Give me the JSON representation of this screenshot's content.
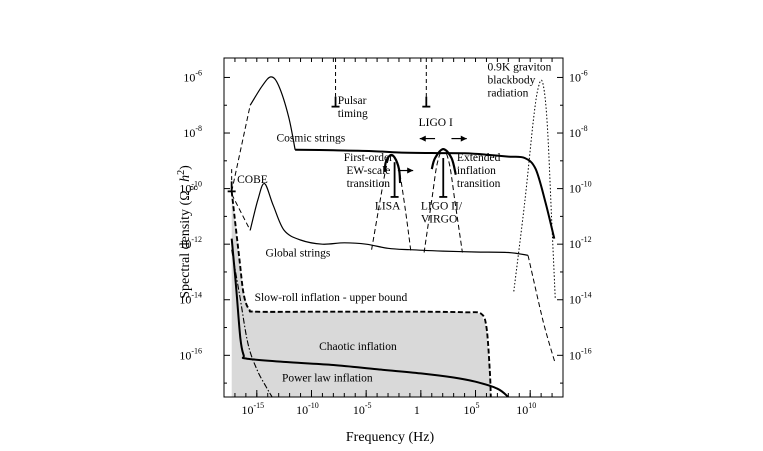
{
  "chart_data": {
    "type": "line",
    "title": "",
    "xlabel": "Frequency (Hz)",
    "ylabel_parts": {
      "pre": "Spectral density (Ω",
      "sub": "g",
      "mid": " h",
      "sup": "2",
      "post": ")"
    },
    "x_log10_range": [
      -18,
      13
    ],
    "y_log10_range": [
      -17.5,
      -5.3
    ],
    "x_ticks": [
      {
        "base": "10",
        "exp": "-15",
        "x": -15
      },
      {
        "base": "10",
        "exp": "-10",
        "x": -10
      },
      {
        "base": "10",
        "exp": "-5",
        "x": -5
      },
      {
        "base": "1",
        "exp": "",
        "x": 0
      },
      {
        "base": "10",
        "exp": "5",
        "x": 5
      },
      {
        "base": "10",
        "exp": "10",
        "x": 10
      }
    ],
    "y_ticks": [
      {
        "base": "10",
        "exp": "-6",
        "y": -6
      },
      {
        "base": "10",
        "exp": "-8",
        "y": -8
      },
      {
        "base": "10",
        "exp": "-10",
        "y": -10
      },
      {
        "base": "10",
        "exp": "-12",
        "y": -12
      },
      {
        "base": "10",
        "exp": "-14",
        "y": -14
      },
      {
        "base": "10",
        "exp": "-16",
        "y": -16
      }
    ],
    "series": [
      {
        "style": "thick",
        "points": [
          [
            -11.5,
            -8.6
          ],
          [
            -8,
            -8.62
          ],
          [
            -4.5,
            -8.65
          ],
          [
            -2,
            -8.7
          ],
          [
            1,
            -8.72
          ],
          [
            4,
            -8.73
          ],
          [
            6,
            -8.78
          ],
          [
            8,
            -8.85
          ],
          [
            9.5,
            -8.9
          ],
          [
            10.5,
            -9.3
          ],
          [
            11.4,
            -10.5
          ],
          [
            12.2,
            -11.8
          ]
        ]
      },
      {
        "style": "solid",
        "points": [
          [
            -15.6,
            -7.0
          ],
          [
            -14.5,
            -6.3
          ],
          [
            -13.7,
            -5.98
          ],
          [
            -13.0,
            -6.3
          ],
          [
            -12.1,
            -7.4
          ],
          [
            -11.5,
            -8.6
          ]
        ]
      },
      {
        "style": "dashed",
        "points": [
          [
            -17.3,
            -10.1
          ],
          [
            -15.6,
            -7.0
          ]
        ]
      },
      {
        "style": "solid",
        "points": [
          [
            -15.6,
            -11.5
          ],
          [
            -14.9,
            -10.4
          ],
          [
            -14.3,
            -9.82
          ],
          [
            -13.5,
            -10.6
          ],
          [
            -12.5,
            -11.5
          ],
          [
            -11,
            -11.85
          ],
          [
            -9,
            -12.0
          ],
          [
            -7,
            -11.95
          ],
          [
            -5,
            -12.0
          ],
          [
            -3,
            -12.15
          ],
          [
            -1,
            -12.2
          ],
          [
            2,
            -12.25
          ],
          [
            5,
            -12.28
          ],
          [
            8,
            -12.3
          ],
          [
            9.8,
            -12.4
          ]
        ]
      },
      {
        "style": "dashed",
        "points": [
          [
            -17.3,
            -10.2
          ],
          [
            -15.6,
            -11.5
          ]
        ]
      },
      {
        "style": "dashed",
        "points": [
          [
            9.8,
            -12.4
          ],
          [
            11.2,
            -14.8
          ],
          [
            12.3,
            -16.3
          ]
        ]
      },
      {
        "style": "dotted",
        "points": [
          [
            8.5,
            -13.7
          ],
          [
            9.5,
            -10.5
          ],
          [
            10.3,
            -7.5
          ],
          [
            10.75,
            -6.35
          ],
          [
            11.15,
            -6.2
          ],
          [
            11.55,
            -7.6
          ],
          [
            11.95,
            -11
          ],
          [
            12.3,
            -14
          ]
        ]
      },
      {
        "style": "thickdash",
        "points": [
          [
            -17.3,
            -10.1
          ],
          [
            -16.6,
            -12.5
          ],
          [
            -16.2,
            -13.8
          ],
          [
            -15.7,
            -14.35
          ],
          [
            -15,
            -14.43
          ],
          [
            -10,
            -14.43
          ],
          [
            -5,
            -14.43
          ],
          [
            0,
            -14.43
          ],
          [
            4,
            -14.45
          ],
          [
            5.5,
            -14.5
          ],
          [
            6.0,
            -15.0
          ],
          [
            6.3,
            -16.5
          ],
          [
            6.4,
            -17.5
          ]
        ]
      },
      {
        "style": "thick",
        "points": [
          [
            -17.3,
            -11.8
          ],
          [
            -16.9,
            -13.5
          ],
          [
            -16.5,
            -15.4
          ],
          [
            -16.2,
            -16.0
          ],
          [
            -15.9,
            -16.12
          ],
          [
            -12,
            -16.25
          ],
          [
            -8,
            -16.35
          ],
          [
            -4,
            -16.5
          ],
          [
            0,
            -16.65
          ],
          [
            3,
            -16.8
          ],
          [
            5,
            -16.95
          ],
          [
            7,
            -17.2
          ],
          [
            8.0,
            -17.5
          ]
        ]
      },
      {
        "style": "dashdot",
        "points": [
          [
            -17.3,
            -12.2
          ],
          [
            -16.5,
            -14.0
          ],
          [
            -15.8,
            -15.6
          ],
          [
            -15.0,
            -16.5
          ],
          [
            -14.2,
            -17.1
          ],
          [
            -13.6,
            -17.5
          ]
        ]
      },
      {
        "style": "dashed",
        "points": [
          [
            -4.5,
            -12.2
          ],
          [
            -3.8,
            -10.6
          ],
          [
            -3.2,
            -9.3
          ],
          [
            -2.8,
            -8.8
          ],
          [
            -2.4,
            -8.88
          ],
          [
            -2.0,
            -9.3
          ],
          [
            -1.4,
            -10.8
          ],
          [
            -0.9,
            -12.3
          ]
        ]
      },
      {
        "style": "dashed",
        "points": [
          [
            0.3,
            -12.3
          ],
          [
            1.0,
            -10.4
          ],
          [
            1.5,
            -9.1
          ],
          [
            2.05,
            -8.58
          ],
          [
            2.6,
            -9.1
          ],
          [
            3.1,
            -10.4
          ],
          [
            3.8,
            -12.3
          ]
        ]
      }
    ],
    "shaded_region": [
      [
        -17.3,
        -10.1
      ],
      [
        -16.6,
        -12.5
      ],
      [
        -16.2,
        -13.8
      ],
      [
        -15.7,
        -14.35
      ],
      [
        -15,
        -14.43
      ],
      [
        -10,
        -14.43
      ],
      [
        -5,
        -14.43
      ],
      [
        0,
        -14.43
      ],
      [
        4,
        -14.45
      ],
      [
        5.5,
        -14.5
      ],
      [
        6.0,
        -15.0
      ],
      [
        6.3,
        -16.5
      ],
      [
        6.4,
        -17.5
      ],
      [
        -17.3,
        -17.5
      ]
    ],
    "arches": [
      {
        "points": [
          [
            -3.3,
            -9.4
          ],
          [
            -3.2,
            -9.05
          ],
          [
            -2.8,
            -8.8
          ],
          [
            -2.4,
            -8.88
          ],
          [
            -2.0,
            -9.3
          ],
          [
            -1.9,
            -9.8
          ]
        ]
      },
      {
        "points": [
          [
            1.0,
            -9.3
          ],
          [
            1.3,
            -8.9
          ],
          [
            2.05,
            -8.58
          ],
          [
            2.8,
            -8.9
          ],
          [
            3.2,
            -9.5
          ]
        ]
      }
    ],
    "sensitivity_markers": [
      {
        "x": -17.3,
        "y_from": -9.3,
        "y_to": -10.1,
        "dashed_top": true
      },
      {
        "x": -7.8,
        "y_from": -5.3,
        "y_to": -7.05,
        "dashed_top": true
      },
      {
        "x": 0.5,
        "y_from": -5.3,
        "y_to": -7.05,
        "dashed_top": true
      },
      {
        "x": -2.4,
        "y_from": -9.05,
        "y_to": -10.3,
        "dashed_top": false
      },
      {
        "x": 2.05,
        "y_from": -8.9,
        "y_to": -10.3,
        "dashed_top": false
      }
    ],
    "arrows": [
      {
        "from": [
          -2.1,
          -9.35
        ],
        "to": [
          -0.7,
          -9.35
        ]
      },
      {
        "from": [
          1.3,
          -8.2
        ],
        "to": [
          -0.1,
          -8.2
        ]
      },
      {
        "from": [
          2.8,
          -8.2
        ],
        "to": [
          4.2,
          -8.2
        ]
      }
    ],
    "annotations": [
      {
        "lines": [
          "Pulsar",
          "timing"
        ],
        "x": -7.6,
        "y": -6.95,
        "anchor": "start"
      },
      {
        "lines": [
          "LIGO I"
        ],
        "x": -0.2,
        "y": -7.75,
        "anchor": "start"
      },
      {
        "lines": [
          "0.9K graviton",
          "blackbody",
          "radiation"
        ],
        "x": 6.1,
        "y": -5.75,
        "anchor": "start"
      },
      {
        "lines": [
          "Cosmic strings"
        ],
        "x": -13.2,
        "y": -8.3,
        "anchor": "start"
      },
      {
        "lines": [
          "First-order",
          "EW-scale",
          "transition"
        ],
        "x": -4.8,
        "y": -9.0,
        "anchor": "middle"
      },
      {
        "lines": [
          "Extended",
          "inflation",
          "transition"
        ],
        "x": 3.3,
        "y": -9.0,
        "anchor": "start"
      },
      {
        "lines": [
          "COBE"
        ],
        "x": -16.8,
        "y": -9.8,
        "anchor": "start"
      },
      {
        "lines": [
          "LISA"
        ],
        "x": -4.2,
        "y": -10.75,
        "anchor": "start"
      },
      {
        "lines": [
          "LIGO II/",
          "VIRGO"
        ],
        "x": 0.0,
        "y": -10.75,
        "anchor": "start"
      },
      {
        "lines": [
          "Global strings"
        ],
        "x": -14.2,
        "y": -12.45,
        "anchor": "start"
      },
      {
        "lines": [
          "Slow-roll inflation - upper bound"
        ],
        "x": -15.2,
        "y": -14.05,
        "anchor": "start"
      },
      {
        "lines": [
          "Chaotic inflation"
        ],
        "x": -9.3,
        "y": -15.8,
        "anchor": "start"
      },
      {
        "lines": [
          "Power law inflation"
        ],
        "x": -12.7,
        "y": -16.95,
        "anchor": "start"
      }
    ]
  }
}
